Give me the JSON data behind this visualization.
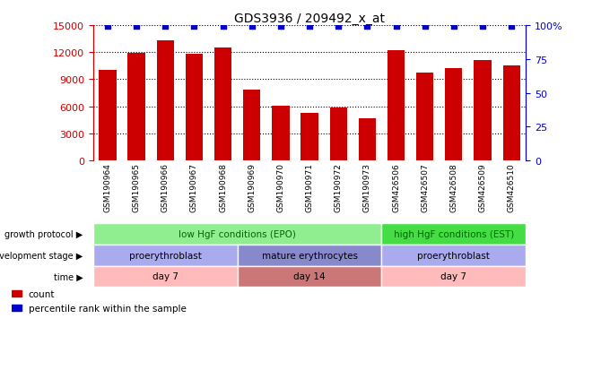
{
  "title": "GDS3936 / 209492_x_at",
  "samples": [
    "GSM190964",
    "GSM190965",
    "GSM190966",
    "GSM190967",
    "GSM190968",
    "GSM190969",
    "GSM190970",
    "GSM190971",
    "GSM190972",
    "GSM190973",
    "GSM426506",
    "GSM426507",
    "GSM426508",
    "GSM426509",
    "GSM426510"
  ],
  "counts": [
    10000,
    11900,
    13300,
    11800,
    12500,
    7900,
    6100,
    5300,
    5900,
    4700,
    12200,
    9700,
    10200,
    11100,
    10500
  ],
  "percentiles_pct": [
    99,
    99,
    99,
    99,
    99,
    99,
    99,
    99,
    99,
    99,
    99,
    99,
    99,
    99,
    99
  ],
  "bar_color": "#CC0000",
  "dot_color": "#0000CC",
  "ylim_left": [
    0,
    15000
  ],
  "ylim_right": [
    0,
    100
  ],
  "yticks_left": [
    0,
    3000,
    6000,
    9000,
    12000,
    15000
  ],
  "yticks_right": [
    0,
    25,
    50,
    75,
    100
  ],
  "ytick_labels_right": [
    "0",
    "25",
    "50",
    "75",
    "100%"
  ],
  "left_axis_color": "#CC0000",
  "right_axis_color": "#0000CC",
  "bg_color": "#FFFFFF",
  "xtick_bg_color": "#CCCCCC",
  "row_labels": [
    "growth protocol",
    "development stage",
    "time"
  ],
  "annotation_rows": [
    {
      "segments": [
        {
          "label": "low HgF conditions (EPO)",
          "start": 0,
          "end": 10,
          "color": "#90EE90",
          "text_color": "#006600"
        },
        {
          "label": "high HgF conditions (EST)",
          "start": 10,
          "end": 15,
          "color": "#44DD44",
          "text_color": "#006600"
        }
      ]
    },
    {
      "segments": [
        {
          "label": "proerythroblast",
          "start": 0,
          "end": 5,
          "color": "#AAAAEE",
          "text_color": "#000000"
        },
        {
          "label": "mature erythrocytes",
          "start": 5,
          "end": 10,
          "color": "#8888CC",
          "text_color": "#000000"
        },
        {
          "label": "proerythroblast",
          "start": 10,
          "end": 15,
          "color": "#AAAAEE",
          "text_color": "#000000"
        }
      ]
    },
    {
      "segments": [
        {
          "label": "day 7",
          "start": 0,
          "end": 5,
          "color": "#FFBBBB",
          "text_color": "#000000"
        },
        {
          "label": "day 14",
          "start": 5,
          "end": 10,
          "color": "#CC7777",
          "text_color": "#000000"
        },
        {
          "label": "day 7",
          "start": 10,
          "end": 15,
          "color": "#FFBBBB",
          "text_color": "#000000"
        }
      ]
    }
  ],
  "legend_items": [
    {
      "color": "#CC0000",
      "label": "count"
    },
    {
      "color": "#0000CC",
      "label": "percentile rank within the sample"
    }
  ]
}
